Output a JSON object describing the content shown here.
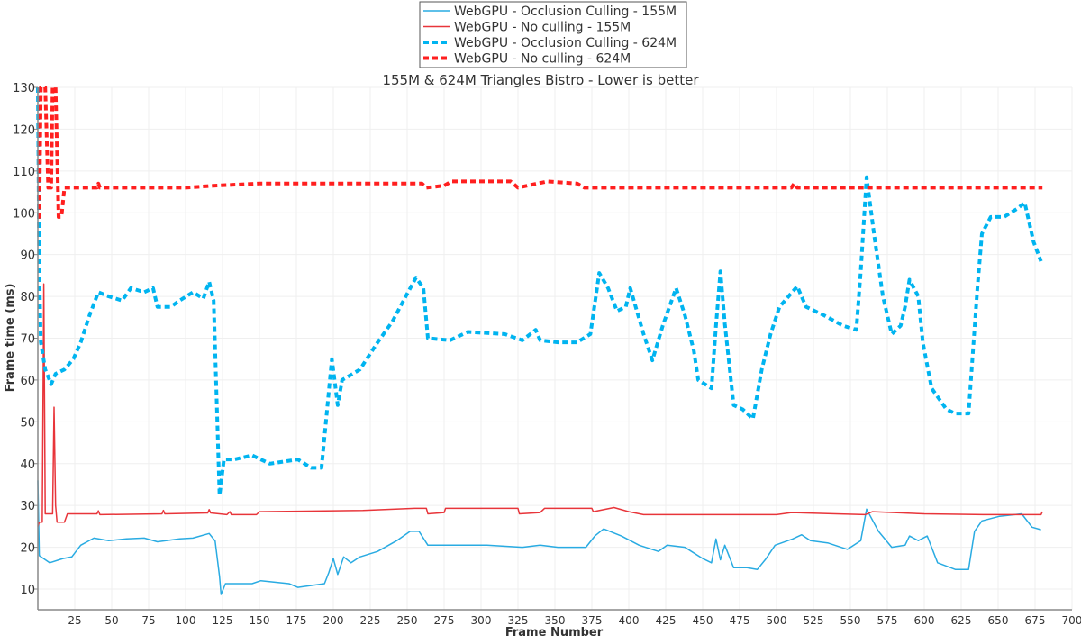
{
  "chart_data": {
    "type": "line",
    "title": "155M & 624M Triangles Bistro - Lower is better",
    "xlabel": "Frame Number",
    "ylabel": "Frame time (ms)",
    "xlim": [
      0,
      700
    ],
    "ylim": [
      5,
      130
    ],
    "x_ticks": [
      25,
      50,
      75,
      100,
      125,
      150,
      175,
      200,
      225,
      250,
      275,
      300,
      325,
      350,
      375,
      400,
      425,
      450,
      475,
      500,
      525,
      550,
      575,
      600,
      625,
      650,
      675,
      700
    ],
    "y_ticks": [
      10,
      20,
      30,
      40,
      50,
      60,
      70,
      80,
      90,
      100,
      110,
      120,
      130
    ],
    "grid": true,
    "legend_position": "top-center",
    "series": [
      {
        "name": "WebGPU - Occlusion Culling - 155M",
        "color": "#29abe2",
        "style": "solid",
        "points": [
          [
            0,
            36
          ],
          [
            1,
            18
          ],
          [
            8,
            16.3
          ],
          [
            17,
            17.3
          ],
          [
            23,
            17.7
          ],
          [
            29,
            20.5
          ],
          [
            38,
            22.2
          ],
          [
            48,
            21.6
          ],
          [
            60,
            22
          ],
          [
            72,
            22.2
          ],
          [
            81,
            21.3
          ],
          [
            96,
            22
          ],
          [
            105,
            22.2
          ],
          [
            116,
            23.3
          ],
          [
            120,
            21.5
          ],
          [
            123,
            13
          ],
          [
            124,
            8.7
          ],
          [
            127,
            11.3
          ],
          [
            145,
            11.3
          ],
          [
            151,
            12
          ],
          [
            170,
            11.3
          ],
          [
            176,
            10.4
          ],
          [
            194,
            11.3
          ],
          [
            197,
            14
          ],
          [
            200,
            17.3
          ],
          [
            203,
            13.5
          ],
          [
            207,
            17.7
          ],
          [
            212,
            16.3
          ],
          [
            218,
            17.7
          ],
          [
            230,
            19
          ],
          [
            243,
            21.6
          ],
          [
            252,
            23.8
          ],
          [
            258,
            23.8
          ],
          [
            264,
            20.5
          ],
          [
            279,
            20.5
          ],
          [
            304,
            20.5
          ],
          [
            328,
            20
          ],
          [
            340,
            20.5
          ],
          [
            352,
            20
          ],
          [
            371,
            20
          ],
          [
            377,
            22.7
          ],
          [
            383,
            24.4
          ],
          [
            395,
            22.7
          ],
          [
            407,
            20.5
          ],
          [
            420,
            19
          ],
          [
            426,
            20.5
          ],
          [
            438,
            20
          ],
          [
            450,
            17.3
          ],
          [
            456,
            16.3
          ],
          [
            459,
            22
          ],
          [
            462,
            17
          ],
          [
            465,
            20.5
          ],
          [
            471,
            15.1
          ],
          [
            480,
            15.1
          ],
          [
            487,
            14.7
          ],
          [
            493,
            17.3
          ],
          [
            499,
            20.5
          ],
          [
            511,
            22
          ],
          [
            517,
            23
          ],
          [
            523,
            21.6
          ],
          [
            535,
            21
          ],
          [
            548,
            19.5
          ],
          [
            557,
            21.6
          ],
          [
            561,
            29.1
          ],
          [
            569,
            23.8
          ],
          [
            578,
            20
          ],
          [
            587,
            20.5
          ],
          [
            590,
            22.7
          ],
          [
            596,
            21.6
          ],
          [
            602,
            22.7
          ],
          [
            609,
            16.3
          ],
          [
            621,
            14.7
          ],
          [
            630,
            14.7
          ],
          [
            634,
            23.8
          ],
          [
            639,
            26.3
          ],
          [
            651,
            27.4
          ],
          [
            666,
            28
          ],
          [
            673,
            24.8
          ],
          [
            679,
            24.2
          ]
        ]
      },
      {
        "name": "WebGPU - No culling - 155M",
        "color": "#e8353a",
        "style": "solid",
        "points": [
          [
            0,
            25
          ],
          [
            1,
            26
          ],
          [
            3,
            26
          ],
          [
            4,
            83
          ],
          [
            5,
            28
          ],
          [
            10,
            28
          ],
          [
            11,
            53.5
          ],
          [
            12,
            30
          ],
          [
            13,
            26
          ],
          [
            18,
            26
          ],
          [
            20,
            28
          ],
          [
            40,
            28
          ],
          [
            41,
            28.7
          ],
          [
            42,
            27.8
          ],
          [
            84,
            28
          ],
          [
            85,
            28.8
          ],
          [
            86,
            28
          ],
          [
            115,
            28.2
          ],
          [
            116,
            29
          ],
          [
            117,
            28.2
          ],
          [
            128,
            27.8
          ],
          [
            130,
            28.5
          ],
          [
            131,
            27.8
          ],
          [
            148,
            27.8
          ],
          [
            150,
            28.5
          ],
          [
            220,
            28.8
          ],
          [
            255,
            29.3
          ],
          [
            263,
            29.3
          ],
          [
            264,
            28
          ],
          [
            275,
            28.3
          ],
          [
            276,
            29.3
          ],
          [
            325,
            29.3
          ],
          [
            326,
            28
          ],
          [
            340,
            28.3
          ],
          [
            343,
            29.3
          ],
          [
            375,
            29.3
          ],
          [
            376,
            28.5
          ],
          [
            390,
            29.5
          ],
          [
            400,
            28.5
          ],
          [
            410,
            27.8
          ],
          [
            460,
            27.8
          ],
          [
            500,
            27.8
          ],
          [
            510,
            28.3
          ],
          [
            540,
            28
          ],
          [
            560,
            27.8
          ],
          [
            565,
            28.5
          ],
          [
            600,
            28
          ],
          [
            640,
            27.8
          ],
          [
            679,
            27.8
          ],
          [
            680,
            28.5
          ]
        ]
      },
      {
        "name": "WebGPU - Occlusion Culling - 624M",
        "color": "#00b4f0",
        "style": "dotted",
        "points": [
          [
            0,
            130
          ],
          [
            1,
            86
          ],
          [
            2,
            69
          ],
          [
            5,
            62.5
          ],
          [
            9,
            59
          ],
          [
            12,
            61.5
          ],
          [
            18,
            62.5
          ],
          [
            24,
            65
          ],
          [
            29,
            69
          ],
          [
            35,
            75.5
          ],
          [
            41,
            81
          ],
          [
            48,
            80
          ],
          [
            57,
            79
          ],
          [
            63,
            82
          ],
          [
            72,
            81
          ],
          [
            78,
            82
          ],
          [
            81,
            77.5
          ],
          [
            90,
            77.5
          ],
          [
            96,
            79
          ],
          [
            105,
            81
          ],
          [
            112,
            79.5
          ],
          [
            116,
            83.5
          ],
          [
            119,
            79
          ],
          [
            121,
            56
          ],
          [
            123,
            32.4
          ],
          [
            126,
            41
          ],
          [
            133,
            41
          ],
          [
            145,
            42
          ],
          [
            157,
            40
          ],
          [
            176,
            41
          ],
          [
            185,
            39
          ],
          [
            192,
            39
          ],
          [
            195,
            50
          ],
          [
            199,
            65
          ],
          [
            203,
            54
          ],
          [
            206,
            60
          ],
          [
            218,
            62.5
          ],
          [
            230,
            69
          ],
          [
            240,
            74
          ],
          [
            249,
            80
          ],
          [
            256,
            84.5
          ],
          [
            261,
            82
          ],
          [
            264,
            70
          ],
          [
            279,
            69.5
          ],
          [
            291,
            71.5
          ],
          [
            316,
            71
          ],
          [
            328,
            69.5
          ],
          [
            337,
            72
          ],
          [
            340,
            69.5
          ],
          [
            352,
            69
          ],
          [
            365,
            69
          ],
          [
            374,
            71
          ],
          [
            380,
            85.6
          ],
          [
            386,
            82
          ],
          [
            392,
            76.5
          ],
          [
            398,
            77.5
          ],
          [
            401,
            82
          ],
          [
            410,
            71
          ],
          [
            416,
            64.7
          ],
          [
            423,
            73
          ],
          [
            432,
            82
          ],
          [
            438,
            75.5
          ],
          [
            444,
            67
          ],
          [
            447,
            60
          ],
          [
            456,
            58
          ],
          [
            459,
            73
          ],
          [
            462,
            86
          ],
          [
            465,
            73.5
          ],
          [
            471,
            54
          ],
          [
            477,
            53
          ],
          [
            484,
            50.7
          ],
          [
            490,
            62.5
          ],
          [
            496,
            71
          ],
          [
            502,
            77.5
          ],
          [
            514,
            82.4
          ],
          [
            520,
            77.5
          ],
          [
            532,
            75.5
          ],
          [
            545,
            73
          ],
          [
            554,
            72
          ],
          [
            557,
            86
          ],
          [
            561,
            108.5
          ],
          [
            566,
            95
          ],
          [
            572,
            80
          ],
          [
            578,
            71
          ],
          [
            584,
            73
          ],
          [
            587,
            77.5
          ],
          [
            590,
            84
          ],
          [
            596,
            80
          ],
          [
            599,
            69
          ],
          [
            605,
            58
          ],
          [
            615,
            53
          ],
          [
            621,
            52
          ],
          [
            630,
            52
          ],
          [
            636,
            82
          ],
          [
            639,
            95
          ],
          [
            645,
            99
          ],
          [
            654,
            99
          ],
          [
            663,
            101
          ],
          [
            668,
            102.4
          ],
          [
            674,
            93
          ],
          [
            679,
            88.4
          ]
        ]
      },
      {
        "name": "WebGPU - No culling - 624M",
        "color": "#ff1f1f",
        "style": "dotted",
        "points": [
          [
            0,
            99
          ],
          [
            1,
            99
          ],
          [
            2,
            130
          ],
          [
            5,
            130
          ],
          [
            7,
            106
          ],
          [
            9,
            106
          ],
          [
            10,
            130
          ],
          [
            12,
            130
          ],
          [
            14,
            99
          ],
          [
            16,
            99
          ],
          [
            18,
            106
          ],
          [
            40,
            106
          ],
          [
            41,
            107
          ],
          [
            42,
            106
          ],
          [
            100,
            106
          ],
          [
            120,
            106.5
          ],
          [
            150,
            107
          ],
          [
            260,
            107
          ],
          [
            263,
            106
          ],
          [
            275,
            106.5
          ],
          [
            280,
            107.5
          ],
          [
            320,
            107.5
          ],
          [
            325,
            106
          ],
          [
            345,
            107.5
          ],
          [
            365,
            107
          ],
          [
            370,
            106
          ],
          [
            510,
            106
          ],
          [
            512,
            107
          ],
          [
            514,
            106
          ],
          [
            680,
            106
          ]
        ]
      }
    ]
  }
}
